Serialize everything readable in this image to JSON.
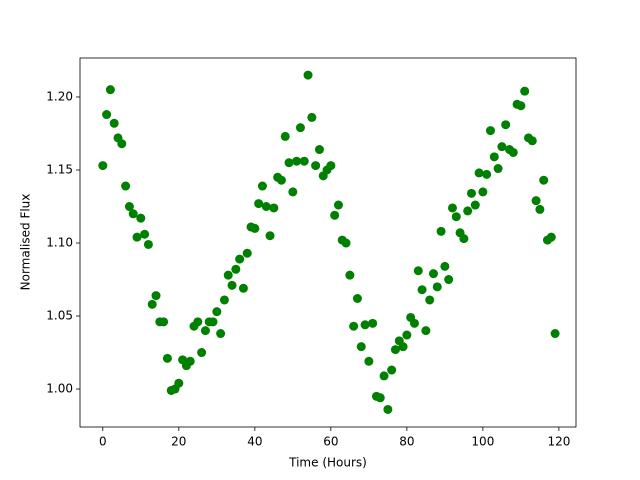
{
  "chart_data": {
    "type": "scatter",
    "xlabel": "Time (Hours)",
    "ylabel": "Normalised Flux",
    "color": "#008000",
    "grid": false,
    "xlim": [
      -6,
      124.5
    ],
    "ylim": [
      0.974,
      1.2267
    ],
    "xticks": [
      0,
      20,
      40,
      60,
      80,
      100,
      120
    ],
    "yticks": [
      {
        "value": 1,
        "label": "1.00"
      },
      1.05,
      {
        "value": 1.1,
        "label": "1.10"
      },
      1.15,
      {
        "value": 1.2,
        "label": "1.20"
      }
    ],
    "x": [
      0,
      1,
      2,
      3,
      4,
      5,
      6,
      7,
      8,
      9,
      10,
      11,
      12,
      13,
      14,
      15,
      16,
      17,
      18,
      19,
      20,
      21,
      22,
      23,
      24,
      25,
      26,
      27,
      28,
      29,
      30,
      31,
      32,
      33,
      34,
      35,
      36,
      37,
      38,
      39,
      40,
      41,
      42,
      43,
      44,
      45,
      46,
      47,
      48,
      49,
      50,
      51,
      52,
      53,
      54,
      55,
      56,
      57,
      58,
      59,
      60,
      61,
      62,
      63,
      64,
      65,
      66,
      67,
      68,
      69,
      70,
      71,
      72,
      73,
      74,
      75,
      76,
      77,
      78,
      79,
      80,
      81,
      82,
      83,
      84,
      85,
      86,
      87,
      88,
      89,
      90,
      91,
      92,
      93,
      94,
      95,
      96,
      97,
      98,
      99,
      100,
      101,
      102,
      103,
      104,
      105,
      106,
      107,
      108,
      109,
      110,
      111,
      112,
      113,
      114,
      115,
      116,
      117,
      118,
      119
    ],
    "values": [
      1.153,
      1.188,
      1.205,
      1.182,
      1.172,
      1.168,
      1.139,
      1.125,
      1.12,
      1.104,
      1.117,
      1.106,
      1.099,
      1.058,
      1.064,
      1.046,
      1.046,
      1.021,
      0.999,
      1.0,
      1.004,
      1.02,
      1.016,
      1.019,
      1.043,
      1.046,
      1.025,
      1.04,
      1.046,
      1.046,
      1.053,
      1.038,
      1.061,
      1.078,
      1.071,
      1.082,
      1.089,
      1.069,
      1.093,
      1.111,
      1.11,
      1.127,
      1.139,
      1.125,
      1.105,
      1.124,
      1.145,
      1.143,
      1.173,
      1.155,
      1.135,
      1.156,
      1.179,
      1.156,
      1.215,
      1.186,
      1.153,
      1.164,
      1.146,
      1.15,
      1.153,
      1.119,
      1.126,
      1.102,
      1.1,
      1.078,
      1.043,
      1.062,
      1.029,
      1.044,
      1.019,
      1.045,
      0.995,
      0.994,
      1.009,
      0.986,
      1.013,
      1.027,
      1.033,
      1.029,
      1.037,
      1.049,
      1.045,
      1.081,
      1.068,
      1.04,
      1.061,
      1.079,
      1.07,
      1.108,
      1.084,
      1.075,
      1.124,
      1.118,
      1.107,
      1.103,
      1.122,
      1.134,
      1.126,
      1.148,
      1.135,
      1.147,
      1.177,
      1.159,
      1.151,
      1.166,
      1.181,
      1.164,
      1.162,
      1.195,
      1.194,
      1.204,
      1.172,
      1.17,
      1.129,
      1.123,
      1.143,
      1.102,
      1.104,
      1.038
    ]
  }
}
